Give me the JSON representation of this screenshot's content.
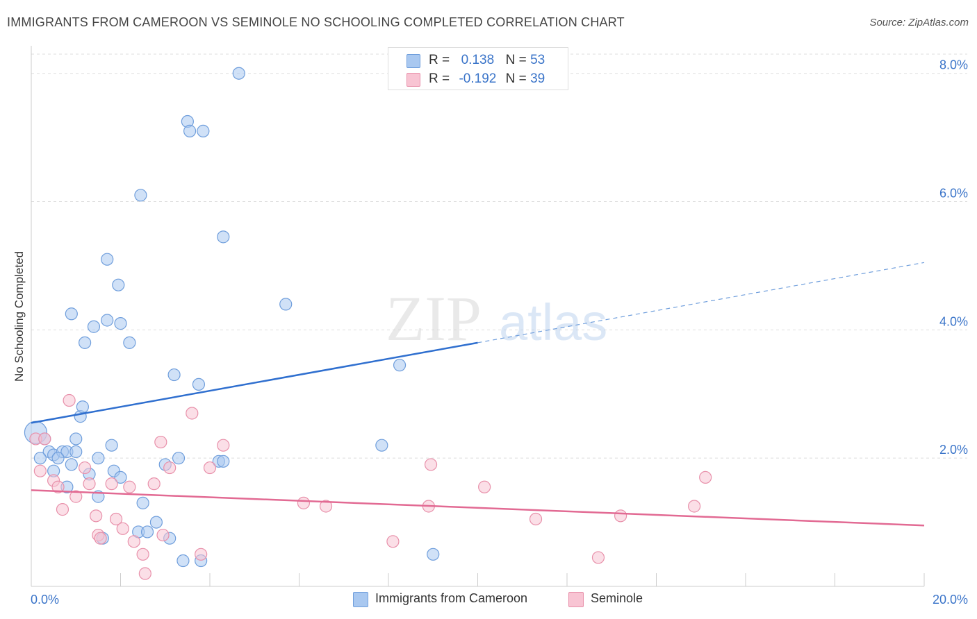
{
  "title": "IMMIGRANTS FROM CAMEROON VS SEMINOLE NO SCHOOLING COMPLETED CORRELATION CHART",
  "source": "Source: ZipAtlas.com",
  "watermark": {
    "zip": "ZIP",
    "atlas": "atlas"
  },
  "legend_top": [
    {
      "r_label": "R =",
      "r_value": "0.138",
      "n_label": "N =",
      "n_value": "53",
      "color": "#a9c8f0",
      "border": "#6f9edc"
    },
    {
      "r_label": "R =",
      "r_value": "-0.192",
      "n_label": "N =",
      "n_value": "39",
      "color": "#f8c4d3",
      "border": "#e890aa"
    }
  ],
  "legend_bottom": [
    {
      "label": "Immigrants from Cameroon",
      "color": "#a9c8f0",
      "border": "#6f9edc"
    },
    {
      "label": "Seminole",
      "color": "#f8c4d3",
      "border": "#e890aa"
    }
  ],
  "chart_data": {
    "type": "scatter",
    "title": "IMMIGRANTS FROM CAMEROON VS SEMINOLE NO SCHOOLING COMPLETED CORRELATION CHART",
    "xlabel": "",
    "ylabel": "No Schooling Completed",
    "xlim": [
      0,
      20
    ],
    "ylim": [
      0,
      8.3
    ],
    "x_tick_labels": [
      "0.0%",
      "20.0%"
    ],
    "y_ticks": [
      2,
      4,
      6,
      8
    ],
    "y_tick_labels": [
      "2.0%",
      "4.0%",
      "6.0%",
      "8.0%"
    ],
    "grid": true,
    "legend_placement": "top-center",
    "series": [
      {
        "name": "Immigrants from Cameroon",
        "color": "#6f9edc",
        "fill": "#a9c8f0",
        "points": [
          [
            0.1,
            2.4
          ],
          [
            0.3,
            2.3
          ],
          [
            0.4,
            2.1
          ],
          [
            0.5,
            2.05
          ],
          [
            0.7,
            2.1
          ],
          [
            0.8,
            2.1
          ],
          [
            0.5,
            1.8
          ],
          [
            0.9,
            1.9
          ],
          [
            0.8,
            1.55
          ],
          [
            1.0,
            2.3
          ],
          [
            1.1,
            2.65
          ],
          [
            1.15,
            2.8
          ],
          [
            1.3,
            1.75
          ],
          [
            1.5,
            2.0
          ],
          [
            1.5,
            1.4
          ],
          [
            1.6,
            0.75
          ],
          [
            1.8,
            2.2
          ],
          [
            1.85,
            1.8
          ],
          [
            2.0,
            1.7
          ],
          [
            2.5,
            1.3
          ],
          [
            2.4,
            0.85
          ],
          [
            2.6,
            0.85
          ],
          [
            2.8,
            1.0
          ],
          [
            3.0,
            1.9
          ],
          [
            3.1,
            0.75
          ],
          [
            3.3,
            2.0
          ],
          [
            3.4,
            0.4
          ],
          [
            3.8,
            0.4
          ],
          [
            4.2,
            1.95
          ],
          [
            4.3,
            1.95
          ],
          [
            0.9,
            4.25
          ],
          [
            1.4,
            4.05
          ],
          [
            1.2,
            3.8
          ],
          [
            1.7,
            4.15
          ],
          [
            2.0,
            4.1
          ],
          [
            2.2,
            3.8
          ],
          [
            1.7,
            5.1
          ],
          [
            1.95,
            4.7
          ],
          [
            2.45,
            6.1
          ],
          [
            3.2,
            3.3
          ],
          [
            3.75,
            3.15
          ],
          [
            4.3,
            5.45
          ],
          [
            3.5,
            7.25
          ],
          [
            3.55,
            7.1
          ],
          [
            3.85,
            7.1
          ],
          [
            4.65,
            8.0
          ],
          [
            5.7,
            4.4
          ],
          [
            7.85,
            2.2
          ],
          [
            8.25,
            3.45
          ],
          [
            9.0,
            0.5
          ],
          [
            0.2,
            2.0
          ],
          [
            0.6,
            2.0
          ],
          [
            1.0,
            2.1
          ]
        ]
      },
      {
        "name": "Seminole",
        "color": "#e890aa",
        "fill": "#f8c4d3",
        "points": [
          [
            0.1,
            2.3
          ],
          [
            0.2,
            1.8
          ],
          [
            0.5,
            1.65
          ],
          [
            0.6,
            1.55
          ],
          [
            0.7,
            1.2
          ],
          [
            0.85,
            2.9
          ],
          [
            1.0,
            1.4
          ],
          [
            1.2,
            1.85
          ],
          [
            1.3,
            1.6
          ],
          [
            1.45,
            1.1
          ],
          [
            1.5,
            0.8
          ],
          [
            1.55,
            0.75
          ],
          [
            1.8,
            1.6
          ],
          [
            1.9,
            1.05
          ],
          [
            2.05,
            0.9
          ],
          [
            2.2,
            1.55
          ],
          [
            2.3,
            0.7
          ],
          [
            2.5,
            0.5
          ],
          [
            2.55,
            0.2
          ],
          [
            2.75,
            1.6
          ],
          [
            2.9,
            2.25
          ],
          [
            2.95,
            0.8
          ],
          [
            3.1,
            1.85
          ],
          [
            3.6,
            2.7
          ],
          [
            3.8,
            0.5
          ],
          [
            4.0,
            1.85
          ],
          [
            4.3,
            2.2
          ],
          [
            6.1,
            1.3
          ],
          [
            6.6,
            1.25
          ],
          [
            8.1,
            0.7
          ],
          [
            8.9,
            1.25
          ],
          [
            8.95,
            1.9
          ],
          [
            10.15,
            1.55
          ],
          [
            11.3,
            1.05
          ],
          [
            12.7,
            0.45
          ],
          [
            13.2,
            1.1
          ],
          [
            14.85,
            1.25
          ],
          [
            15.1,
            1.7
          ],
          [
            0.3,
            2.3
          ]
        ]
      }
    ],
    "trendlines": [
      {
        "series": "Immigrants from Cameroon",
        "solid_x": [
          0,
          10
        ],
        "solid_y": [
          2.55,
          3.8
        ],
        "dashed_x": [
          10,
          20
        ],
        "dashed_y": [
          3.8,
          5.05
        ]
      },
      {
        "series": "Seminole",
        "x": [
          0,
          20
        ],
        "y": [
          1.5,
          0.95
        ]
      }
    ]
  }
}
